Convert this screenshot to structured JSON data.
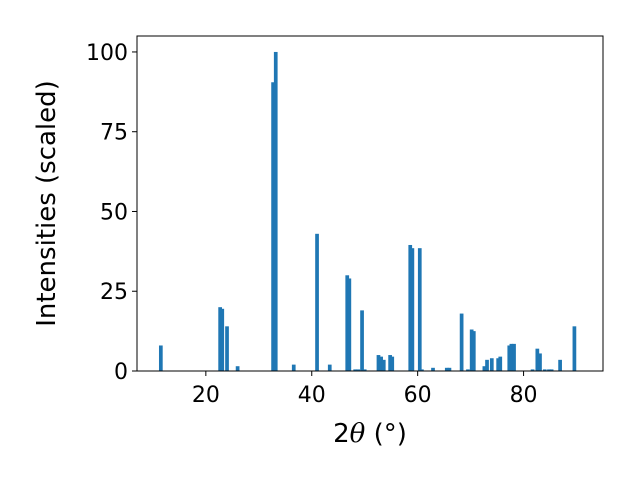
{
  "chart_data": {
    "type": "bar",
    "title": "",
    "xlabel": {
      "prefix": "2",
      "symbol": "θ",
      "suffix": " (°)"
    },
    "ylabel": "Intensities (scaled)",
    "xlim": [
      7,
      95
    ],
    "ylim": [
      0,
      105
    ],
    "xticks": [
      20,
      40,
      60,
      80
    ],
    "yticks": [
      0,
      25,
      50,
      75,
      100
    ],
    "grid": false,
    "bar_color": "#1f77b4",
    "bar_width": 0.7,
    "series": [
      {
        "x": [
          11.5,
          22.7,
          23.1,
          24.0,
          26.0,
          32.7,
          33.2,
          36.6,
          41.0,
          43.4,
          46.7,
          47.1,
          48.2,
          48.8,
          49.5,
          50.0,
          52.6,
          53.1,
          53.6,
          54.8,
          55.2,
          58.6,
          59.0,
          60.4,
          60.8,
          62.9,
          65.5,
          66.0,
          68.3,
          69.5,
          70.2,
          70.6,
          72.6,
          73.1,
          74.0,
          75.2,
          75.6,
          77.3,
          77.7,
          78.2,
          81.7,
          82.6,
          83.1,
          84.0,
          84.8,
          85.3,
          86.9,
          89.6
        ],
        "y": [
          8,
          20,
          19.5,
          14,
          1.5,
          90.5,
          100,
          2,
          43,
          2,
          30,
          29,
          0.5,
          0.5,
          19,
          0.5,
          5,
          4.5,
          3.5,
          5,
          4.5,
          39.5,
          38.5,
          38.5,
          0.5,
          1,
          1,
          1,
          18,
          0.5,
          13,
          12.5,
          1.5,
          3.5,
          4,
          4,
          4.5,
          8,
          8.5,
          8.5,
          0.5,
          7,
          5.5,
          0.5,
          0.5,
          0.5,
          3.5,
          14
        ]
      }
    ]
  }
}
